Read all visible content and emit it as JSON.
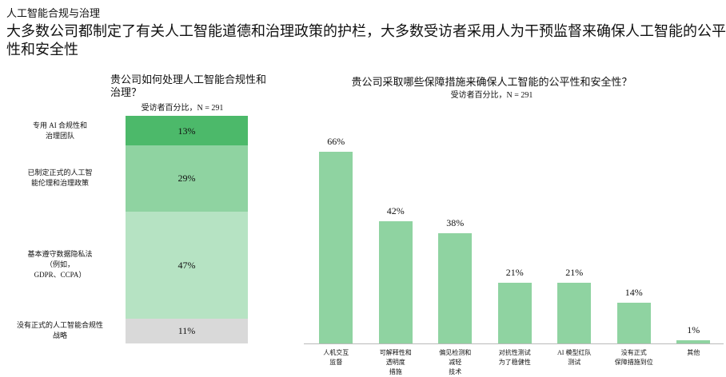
{
  "header": {
    "kicker": "人工智能合规与治理",
    "headline": "大多数公司都制定了有关人工智能道德和治理政策的护栏，大多数受访者采用人为干预监督来确保人工智能的公平性和安全性"
  },
  "chart_data": [
    {
      "type": "stacked_bar",
      "title": "贵公司如何处理人工智能合规性和\n治理？",
      "subtitle": "受访者百分比，N = 291",
      "categories": [
        "专用 AI 合规性和\n治理团队",
        "已制定正式的人工智\n能伦理和治理政策",
        "基本遵守数据隐私法\n（例如，\nGDPR、CCPA）",
        "没有正式的人工智能合规性\n战略"
      ],
      "values": [
        13,
        29,
        47,
        11
      ],
      "value_labels": [
        "13%",
        "29%",
        "47%",
        "11%"
      ],
      "colors": [
        "#4cb96a",
        "#8fd3a1",
        "#b6e3c3",
        "#d9d9d9"
      ]
    },
    {
      "type": "bar",
      "title": "贵公司采取哪些保障措施来确保人工智能的公平性和安全性？",
      "subtitle": "受访者百分比，N = 291",
      "categories": [
        "人机交互\n监督",
        "可解释性和\n透明度\n措施",
        "偏见检测和\n减轻\n技术",
        "对抗性测试\n为了稳健性",
        "AI 模型红队\n测试",
        "没有正式\n保障措施到位",
        "其他"
      ],
      "values": [
        66,
        42,
        38,
        21,
        21,
        14,
        1
      ],
      "value_labels": [
        "66%",
        "42%",
        "38%",
        "21%",
        "21%",
        "14%",
        "1%"
      ],
      "color": "#8fd3a1"
    }
  ]
}
